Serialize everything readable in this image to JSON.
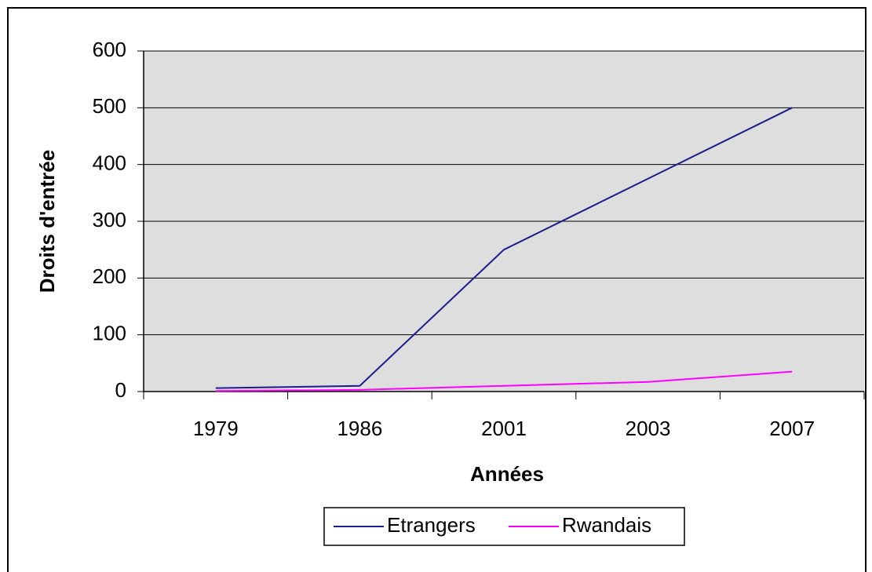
{
  "chart_data": {
    "type": "line",
    "x_label": "Années",
    "y_label": "Droits d'entrée",
    "categories": [
      "1979",
      "1986",
      "2001",
      "2003",
      "2007"
    ],
    "series": [
      {
        "name": "Etrangers",
        "color": "#1c1c8c",
        "values": [
          6,
          10,
          250,
          375,
          500
        ]
      },
      {
        "name": "Rwandais",
        "color": "#ff00ff",
        "values": [
          1,
          3,
          10,
          17,
          35
        ]
      }
    ],
    "ylim": [
      0,
      600
    ],
    "yticks": [
      0,
      100,
      200,
      300,
      400,
      500,
      600
    ],
    "grid": true,
    "legend": "bottom"
  }
}
